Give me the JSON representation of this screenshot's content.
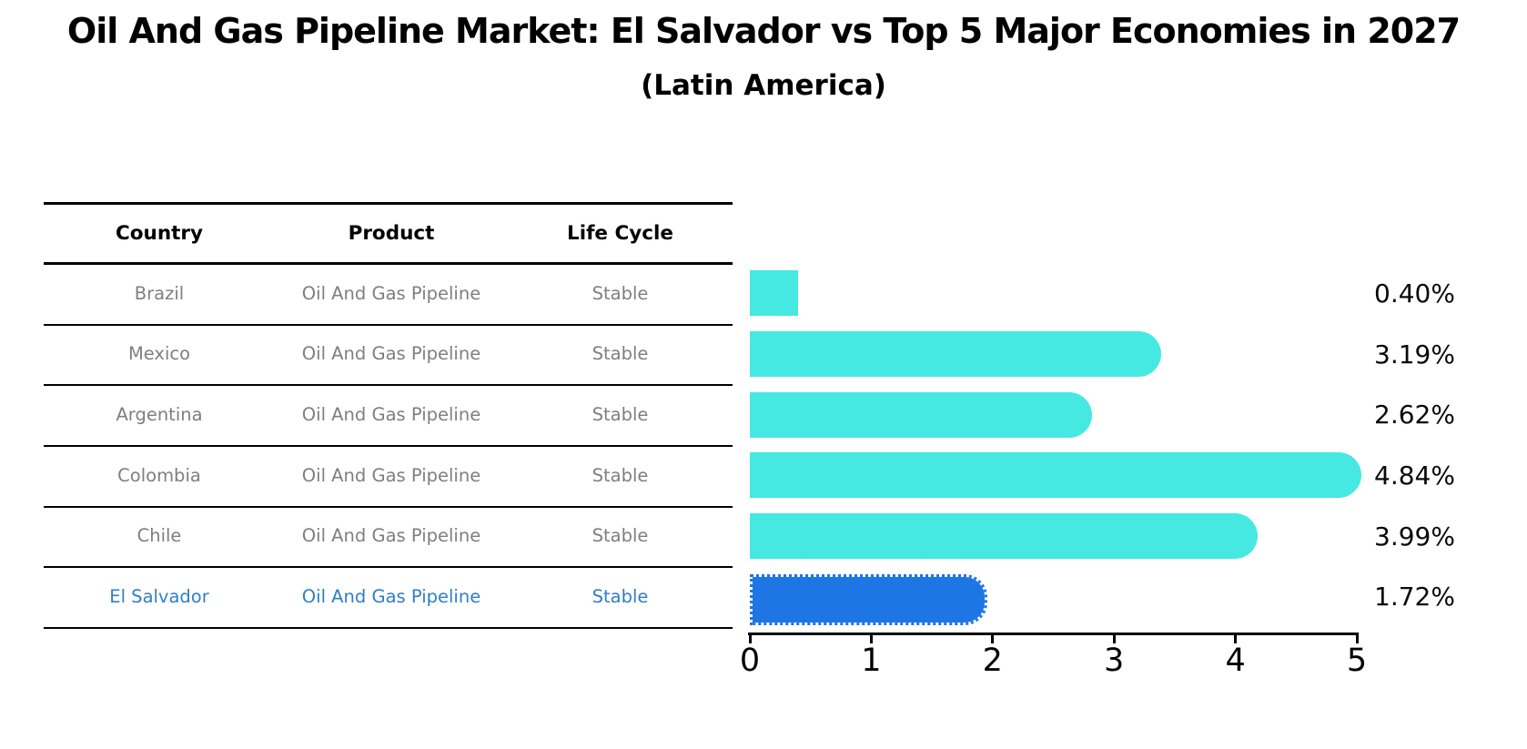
{
  "title": "Oil And Gas Pipeline Market: El Salvador vs Top 5 Major Economies in 2027",
  "subtitle": "(Latin America)",
  "table": {
    "headers": [
      "Country",
      "Product",
      "Life Cycle"
    ],
    "rows": [
      {
        "country": "Brazil",
        "product": "Oil And Gas Pipeline",
        "life_cycle": "Stable",
        "highlight": false
      },
      {
        "country": "Mexico",
        "product": "Oil And Gas Pipeline",
        "life_cycle": "Stable",
        "highlight": false
      },
      {
        "country": "Argentina",
        "product": "Oil And Gas Pipeline",
        "life_cycle": "Stable",
        "highlight": false
      },
      {
        "country": "Colombia",
        "product": "Oil And Gas Pipeline",
        "life_cycle": "Stable",
        "highlight": false
      },
      {
        "country": "Chile",
        "product": "Oil And Gas Pipeline",
        "life_cycle": "Stable",
        "highlight": false
      },
      {
        "country": "El Salvador",
        "product": "Oil And Gas Pipeline",
        "life_cycle": "Stable",
        "highlight": true
      }
    ]
  },
  "chart_data": {
    "type": "bar",
    "orientation": "horizontal",
    "title": "Oil And Gas Pipeline Market: El Salvador vs Top 5 Major Economies in 2027",
    "subtitle": "(Latin America)",
    "categories": [
      "Brazil",
      "Mexico",
      "Argentina",
      "Colombia",
      "Chile",
      "El Salvador"
    ],
    "values": [
      0.4,
      3.19,
      2.62,
      4.84,
      3.99,
      1.72
    ],
    "value_labels": [
      "0.40%",
      "3.19%",
      "2.62%",
      "4.84%",
      "3.99%",
      "1.72%"
    ],
    "xlim": [
      0,
      5
    ],
    "xticks": [
      "0",
      "1",
      "2",
      "3",
      "4",
      "5"
    ],
    "grid": false,
    "legend": false,
    "highlight_index": 5
  },
  "colors": {
    "bar": "#46e8e2",
    "highlight_bar": "#1e76e4",
    "highlight_text": "#2f7fc6",
    "body_text": "#7f7f7f",
    "header_text": "#000000"
  }
}
